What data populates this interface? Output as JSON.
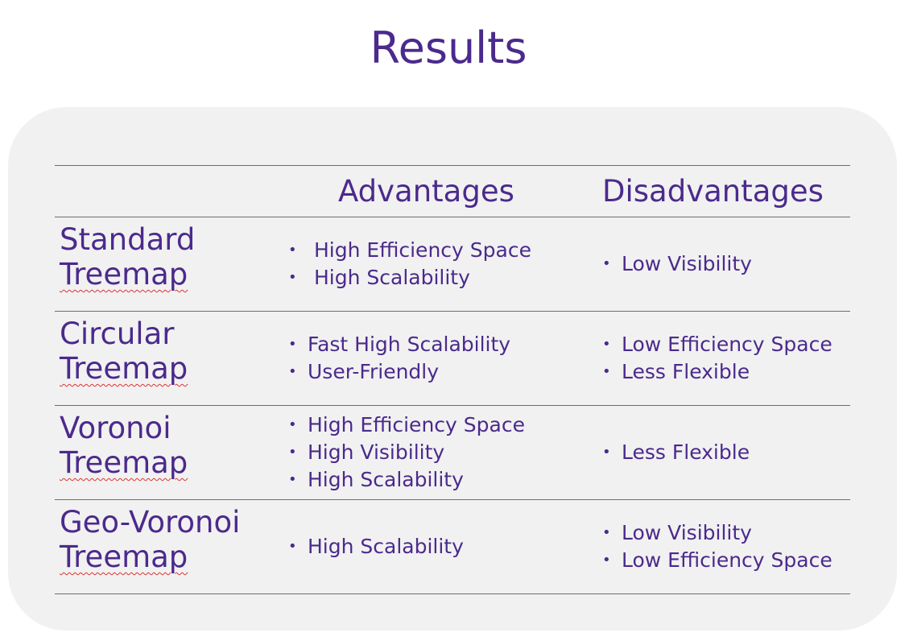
{
  "title": "Results",
  "table": {
    "headers": {
      "blank": "",
      "advantages": "Advantages",
      "disadvantages": "Disadvantages"
    },
    "rows": [
      {
        "name_line1": "Standard",
        "name_line2": "Treemap",
        "advantages": [
          "High Efficiency Space",
          "High Scalability"
        ],
        "disadvantages": [
          "Low Visibility"
        ]
      },
      {
        "name_line1": "Circular",
        "name_line2": "Treemap",
        "advantages": [
          "Fast High Scalability",
          "User-Friendly"
        ],
        "disadvantages": [
          "Low Efficiency Space",
          "Less Flexible"
        ]
      },
      {
        "name_line1": "Voronoi",
        "name_line2": "Treemap",
        "advantages": [
          "High Efficiency Space",
          "High Visibility",
          "High Scalability"
        ],
        "disadvantages": [
          "Less Flexible"
        ]
      },
      {
        "name_line1": "Geo-Voronoi",
        "name_line2": "Treemap",
        "advantages": [
          "High Scalability"
        ],
        "disadvantages": [
          "Low Visibility",
          "Low Efficiency Space"
        ]
      }
    ]
  }
}
